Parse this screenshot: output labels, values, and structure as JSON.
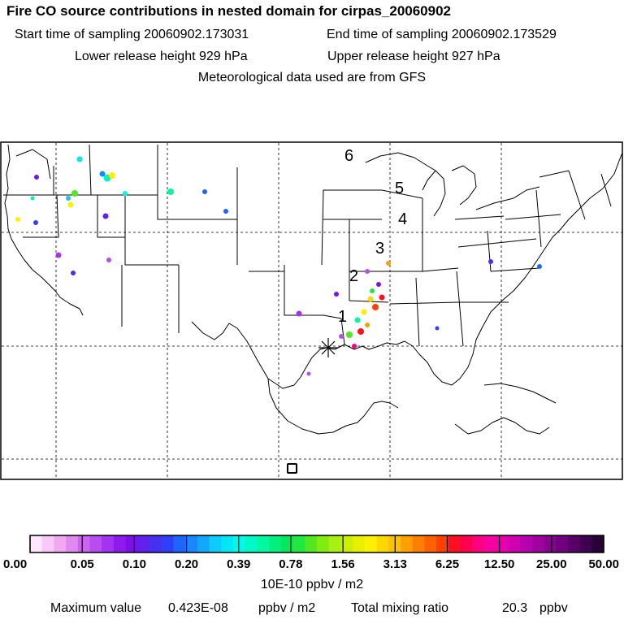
{
  "header": {
    "title": "Fire CO source contributions in nested domain for cirpas_20060902",
    "start_label": "Start time of sampling 20060902.173031",
    "end_label": "End time of sampling 20060902.173529",
    "lower_label": "Lower release height  929 hPa",
    "upper_label": "Upper release height  927 hPa",
    "met_label": "Meteorological data used are from GFS"
  },
  "map": {
    "region": "Contiguous United States and Gulf of Mexico",
    "markers": [
      "6",
      "5",
      "4",
      "3",
      "2",
      "1"
    ],
    "receptor_symbol": "star",
    "reference_symbol": "square"
  },
  "colorbar": {
    "tick_labels": [
      "0.00",
      "0.05",
      "0.10",
      "0.20",
      "0.39",
      "0.78",
      "1.56",
      "3.13",
      "6.25",
      "12.50",
      "25.00",
      "50.00"
    ],
    "colors": [
      "#fde7fd",
      "#f8c8f8",
      "#f0a8f0",
      "#e089ef",
      "#c966ee",
      "#b84cf0",
      "#a333f0",
      "#9019ee",
      "#7b10ea",
      "#6020ee",
      "#4630f2",
      "#3040fa",
      "#1e64ff",
      "#1a86ff",
      "#12a8ff",
      "#0ecaff",
      "#00e8f8",
      "#00f8e8",
      "#00f8c8",
      "#00f8a0",
      "#00f080",
      "#00e860",
      "#20e840",
      "#50e820",
      "#80ec10",
      "#a8f010",
      "#c8f000",
      "#e8f000",
      "#fff000",
      "#ffd800",
      "#ffc000",
      "#ffa000",
      "#ff8000",
      "#ff6000",
      "#ff4000",
      "#ff1020",
      "#ff0050",
      "#ff0080",
      "#f800a0",
      "#e800b0",
      "#d000b0",
      "#b800b0",
      "#a000a0",
      "#880090",
      "#700080",
      "#580068",
      "#400050",
      "#280038"
    ],
    "units": "10E-10 ppbv / m2"
  },
  "footer": {
    "max_label": "Maximum value",
    "max_value": "0.423E-08",
    "max_units": "ppbv / m2",
    "total_label": "Total mixing ratio",
    "total_value": "20.3",
    "total_units": "ppbv"
  }
}
